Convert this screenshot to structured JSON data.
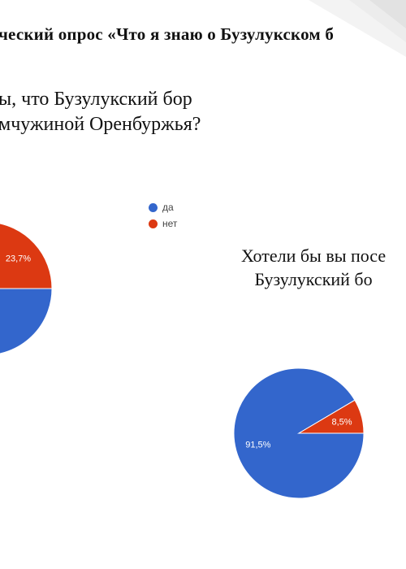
{
  "slide": {
    "heading": "ческий опрос «Что я знаю о Бузулукском б",
    "question1": "ы, что Бузулукский бор\nмчужиной Оренбуржья?",
    "question2": "Хотели бы вы посе\nБузулукский бо"
  },
  "colors": {
    "yes": "#3366CC",
    "no": "#DC3912",
    "decor": "#e9e9e9"
  },
  "legend": {
    "items": [
      {
        "label": "да",
        "color": "#3366CC"
      },
      {
        "label": "нет",
        "color": "#DC3912"
      }
    ]
  },
  "chart_data": [
    {
      "type": "pie",
      "categories": [
        "да",
        "нет"
      ],
      "values": [
        76.3,
        23.7
      ],
      "labels": [
        "",
        "23,7%"
      ],
      "colors": [
        "#3366CC",
        "#DC3912"
      ],
      "legend": "top-right"
    },
    {
      "type": "pie",
      "categories": [
        "да",
        "нет"
      ],
      "values": [
        91.5,
        8.5
      ],
      "labels": [
        "91,5%",
        "8,5%"
      ],
      "colors": [
        "#3366CC",
        "#DC3912"
      ]
    }
  ]
}
